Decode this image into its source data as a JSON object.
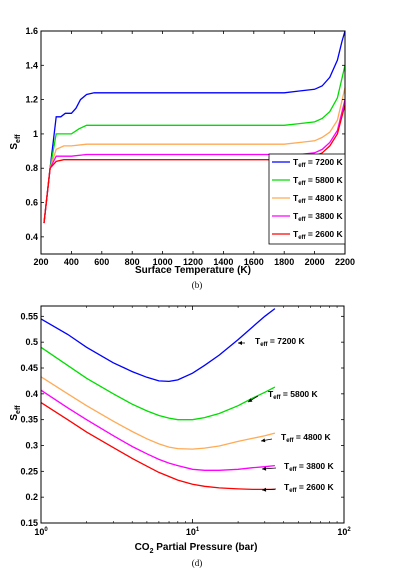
{
  "chart_data": [
    {
      "type": "line",
      "caption": "(b)",
      "xlabel": "Surface Temperature (K)",
      "ylabel": "S",
      "ylabel_sub": "eff",
      "xlim": [
        200,
        2200
      ],
      "ylim": [
        0.3,
        1.6
      ],
      "xticks": [
        200,
        400,
        600,
        800,
        1000,
        1200,
        1400,
        1600,
        1800,
        2000,
        2200
      ],
      "xtick_labels": [
        "200",
        "400",
        "600",
        "800",
        "1000",
        "1200",
        "1400",
        "1600",
        "1800",
        "2000",
        "2200"
      ],
      "yticks": [
        0.4,
        0.6,
        0.8,
        1.0,
        1.2,
        1.4,
        1.6
      ],
      "ytick_labels": [
        "0.4",
        "0.6",
        "0.8",
        "1",
        "1.2",
        "1.4",
        "1.6"
      ],
      "legend_position": "bottom-right",
      "series": [
        {
          "name": "T",
          "name_sub": "eff",
          "name_suffix": " = 7200 K",
          "color": "#0000ff",
          "x": [
            220,
            260,
            300,
            330,
            360,
            400,
            430,
            460,
            500,
            550,
            600,
            800,
            1200,
            1600,
            1800,
            1900,
            2000,
            2050,
            2100,
            2150,
            2180,
            2200
          ],
          "y": [
            0.48,
            0.8,
            1.1,
            1.1,
            1.12,
            1.12,
            1.15,
            1.2,
            1.23,
            1.24,
            1.24,
            1.24,
            1.24,
            1.24,
            1.24,
            1.25,
            1.26,
            1.28,
            1.33,
            1.43,
            1.54,
            1.6
          ]
        },
        {
          "name": "T",
          "name_sub": "eff",
          "name_suffix": " = 5800 K",
          "color": "#00dd00",
          "x": [
            220,
            260,
            300,
            340,
            380,
            400,
            450,
            500,
            600,
            800,
            1200,
            1600,
            1800,
            1900,
            2000,
            2050,
            2100,
            2150,
            2200
          ],
          "y": [
            0.48,
            0.8,
            1.0,
            1.0,
            1.0,
            1.0,
            1.03,
            1.05,
            1.05,
            1.05,
            1.05,
            1.05,
            1.05,
            1.06,
            1.07,
            1.09,
            1.13,
            1.21,
            1.4
          ]
        },
        {
          "name": "T",
          "name_sub": "eff",
          "name_suffix": " = 4800 K",
          "color": "#ffaa55",
          "x": [
            220,
            260,
            300,
            350,
            400,
            500,
            800,
            1200,
            1600,
            1800,
            1900,
            2000,
            2050,
            2100,
            2150,
            2200
          ],
          "y": [
            0.48,
            0.8,
            0.91,
            0.93,
            0.93,
            0.94,
            0.94,
            0.94,
            0.94,
            0.94,
            0.95,
            0.96,
            0.98,
            1.01,
            1.08,
            1.27
          ]
        },
        {
          "name": "T",
          "name_sub": "eff",
          "name_suffix": " = 3800 K",
          "color": "#ff00ff",
          "x": [
            220,
            260,
            300,
            350,
            400,
            500,
            800,
            1200,
            1600,
            1800,
            1900,
            2000,
            2050,
            2100,
            2150,
            2200
          ],
          "y": [
            0.48,
            0.8,
            0.87,
            0.87,
            0.87,
            0.88,
            0.88,
            0.88,
            0.88,
            0.88,
            0.88,
            0.89,
            0.91,
            0.95,
            1.02,
            1.2
          ]
        },
        {
          "name": "T",
          "name_sub": "eff",
          "name_suffix": " = 2600 K",
          "color": "#ff0000",
          "x": [
            220,
            260,
            300,
            350,
            400,
            500,
            800,
            1200,
            1600,
            1800,
            1900,
            2000,
            2050,
            2100,
            2150,
            2200
          ],
          "y": [
            0.48,
            0.8,
            0.84,
            0.85,
            0.85,
            0.85,
            0.85,
            0.85,
            0.85,
            0.85,
            0.86,
            0.87,
            0.89,
            0.93,
            1.0,
            1.17
          ]
        }
      ]
    },
    {
      "type": "line",
      "caption": "(d)",
      "xlabel": "CO",
      "xlabel_sub": "2",
      "xlabel_suffix": " Partial Pressure (bar)",
      "ylabel": "S",
      "ylabel_sub": "eff",
      "xscale": "log",
      "xlim": [
        1,
        100
      ],
      "ylim": [
        0.15,
        0.57
      ],
      "xticks": [
        1,
        10,
        100
      ],
      "xtick_labels": [
        {
          "base": "10",
          "exp": "0"
        },
        {
          "base": "10",
          "exp": "1"
        },
        {
          "base": "10",
          "exp": "2"
        }
      ],
      "yticks": [
        0.15,
        0.2,
        0.25,
        0.3,
        0.35,
        0.4,
        0.45,
        0.5,
        0.55
      ],
      "ytick_labels": [
        "0.15",
        "0.2",
        "0.25",
        "0.3",
        "0.35",
        "0.4",
        "0.45",
        "0.5",
        "0.55"
      ],
      "series": [
        {
          "name": "T",
          "name_sub": "eff",
          "name_suffix": " = 7200 K",
          "color": "#0000ff",
          "x": [
            1,
            1.5,
            2,
            3,
            4,
            5,
            6,
            7,
            8,
            10,
            12,
            15,
            20,
            25,
            30,
            35
          ],
          "y": [
            0.545,
            0.515,
            0.49,
            0.46,
            0.443,
            0.432,
            0.425,
            0.424,
            0.427,
            0.44,
            0.455,
            0.475,
            0.505,
            0.53,
            0.55,
            0.565
          ]
        },
        {
          "name": "T",
          "name_sub": "eff",
          "name_suffix": " = 5800 K",
          "color": "#00dd00",
          "x": [
            1,
            1.5,
            2,
            3,
            4,
            5,
            6,
            7,
            8,
            10,
            12,
            15,
            20,
            25,
            30,
            35
          ],
          "y": [
            0.49,
            0.455,
            0.43,
            0.4,
            0.38,
            0.367,
            0.358,
            0.353,
            0.35,
            0.35,
            0.354,
            0.362,
            0.377,
            0.392,
            0.403,
            0.413
          ]
        },
        {
          "name": "T",
          "name_sub": "eff",
          "name_suffix": " = 4800 K",
          "color": "#ffaa55",
          "x": [
            1,
            1.5,
            2,
            3,
            4,
            5,
            6,
            7,
            8,
            10,
            12,
            15,
            20,
            25,
            30,
            35
          ],
          "y": [
            0.433,
            0.4,
            0.377,
            0.347,
            0.327,
            0.313,
            0.303,
            0.297,
            0.294,
            0.293,
            0.295,
            0.299,
            0.308,
            0.314,
            0.319,
            0.324
          ]
        },
        {
          "name": "T",
          "name_sub": "eff",
          "name_suffix": " = 3800 K",
          "color": "#ff00ff",
          "x": [
            1,
            1.5,
            2,
            3,
            4,
            5,
            6,
            7,
            8,
            10,
            12,
            15,
            20,
            25,
            30,
            35
          ],
          "y": [
            0.407,
            0.373,
            0.35,
            0.319,
            0.298,
            0.284,
            0.273,
            0.266,
            0.261,
            0.254,
            0.252,
            0.252,
            0.254,
            0.257,
            0.259,
            0.261
          ]
        },
        {
          "name": "T",
          "name_sub": "eff",
          "name_suffix": " = 2600 K",
          "color": "#ff0000",
          "x": [
            1,
            1.5,
            2,
            3,
            4,
            5,
            6,
            7,
            8,
            10,
            12,
            15,
            20,
            25,
            30,
            35
          ],
          "y": [
            0.383,
            0.35,
            0.326,
            0.296,
            0.275,
            0.26,
            0.248,
            0.24,
            0.233,
            0.225,
            0.221,
            0.218,
            0.216,
            0.215,
            0.215,
            0.215
          ]
        }
      ]
    }
  ]
}
